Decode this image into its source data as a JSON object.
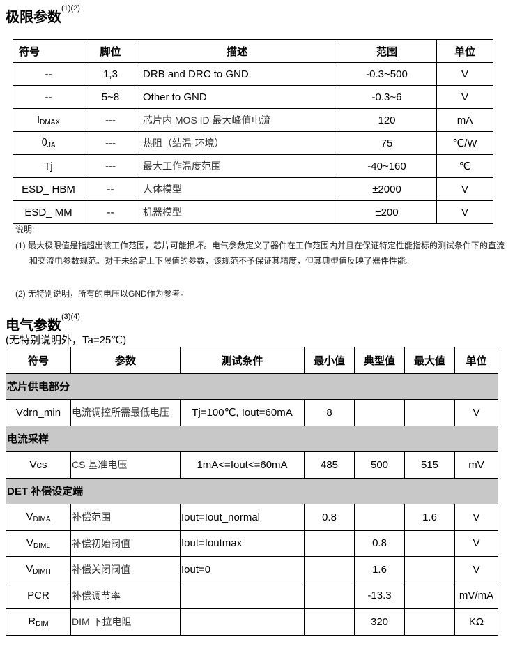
{
  "section1": {
    "title": "极限参数",
    "title_note": "(1)(2)",
    "headers": [
      "符号",
      "脚位",
      "描述",
      "范围",
      "单位"
    ],
    "rows": [
      {
        "symbol": "--",
        "symbol_sub": "",
        "pin": "1,3",
        "desc": "DRB and DRC to GND",
        "range": "-0.3~500",
        "unit": "V"
      },
      {
        "symbol": "--",
        "symbol_sub": "",
        "pin": "5~8",
        "desc": "Other to GND",
        "range": "-0.3~6",
        "unit": "V"
      },
      {
        "symbol": "I",
        "symbol_sub": "DMAX",
        "pin": "---",
        "desc": "芯片内 MOS ID 最大峰值电流",
        "range": "120",
        "unit": "mA"
      },
      {
        "symbol": "θ",
        "symbol_sub": "JA",
        "pin": "---",
        "desc": "热阻（结温-环境）",
        "range": "75",
        "unit": "℃/W"
      },
      {
        "symbol": "Tj",
        "symbol_sub": "",
        "pin": "---",
        "desc": "最大工作温度范围",
        "range": "-40~160",
        "unit": "℃"
      },
      {
        "symbol": "ESD_ HBM",
        "symbol_sub": "",
        "pin": "--",
        "desc": "人体模型",
        "range": "±2000",
        "unit": "V"
      },
      {
        "symbol": "ESD_ MM",
        "symbol_sub": "",
        "pin": "--",
        "desc": "机器模型",
        "range": "±200",
        "unit": "V"
      }
    ],
    "notes_label": "说明:",
    "notes": [
      "(1) 最大极限值是指超出该工作范围，芯片可能损坏。电气参数定义了器件在工作范围内并且在保证特定性能指标的测试条件下的直流和交流电参数规范。对于未给定上下限值的参数，该规范不予保证其精度，但其典型值反映了器件性能。",
      "(2) 无特别说明，所有的电压以GND作为参考。"
    ]
  },
  "section2": {
    "title": "电气参数",
    "title_note": "(3)(4)",
    "subtitle": "(无特别说明外，Ta=25℃)",
    "headers": [
      "符号",
      "参数",
      "测试条件",
      "最小值",
      "典型值",
      "最大值",
      "单位"
    ],
    "groups": [
      {
        "name": "芯片供电部分",
        "rows": [
          {
            "symbol": "Vdrn_min",
            "sub": "",
            "param": "电流调控所需最低电压",
            "cond": "Tj=100℃, Iout=60mA",
            "cond_align": "center",
            "min": "8",
            "typ": "",
            "max": "",
            "unit": "V"
          }
        ]
      },
      {
        "name": "电流采样",
        "rows": [
          {
            "symbol": "Vcs",
            "sub": "",
            "param": "CS 基准电压",
            "cond": "1mA<=Iout<=60mA",
            "cond_align": "center",
            "min": "485",
            "typ": "500",
            "max": "515",
            "unit": "mV"
          }
        ]
      },
      {
        "name": "DET 补偿设定端",
        "rows": [
          {
            "symbol": "V",
            "sub": "DIMA",
            "param": "补偿范围",
            "cond": "Iout=Iout_normal",
            "cond_align": "left",
            "min": "0.8",
            "typ": "",
            "max": "1.6",
            "unit": "V"
          },
          {
            "symbol": "V",
            "sub": "DIML",
            "param": "补偿初始阀值",
            "cond": "Iout=Ioutmax",
            "cond_align": "left",
            "min": "",
            "typ": "0.8",
            "max": "",
            "unit": "V"
          },
          {
            "symbol": "V",
            "sub": "DIMH",
            "param": "补偿关闭阀值",
            "cond": "Iout=0",
            "cond_align": "left",
            "min": "",
            "typ": "1.6",
            "max": "",
            "unit": "V"
          },
          {
            "symbol": "PCR",
            "sub": "",
            "param": "补偿调节率",
            "cond": "",
            "cond_align": "left",
            "min": "",
            "typ": "-13.3",
            "max": "",
            "unit": "mV/mA"
          },
          {
            "symbol": "R",
            "sub": "DIM",
            "param": "DIM 下拉电阻",
            "cond": "",
            "cond_align": "left",
            "min": "",
            "typ": "320",
            "max": "",
            "unit": "KΩ"
          }
        ]
      }
    ],
    "group_color": "#c8c8c8"
  }
}
